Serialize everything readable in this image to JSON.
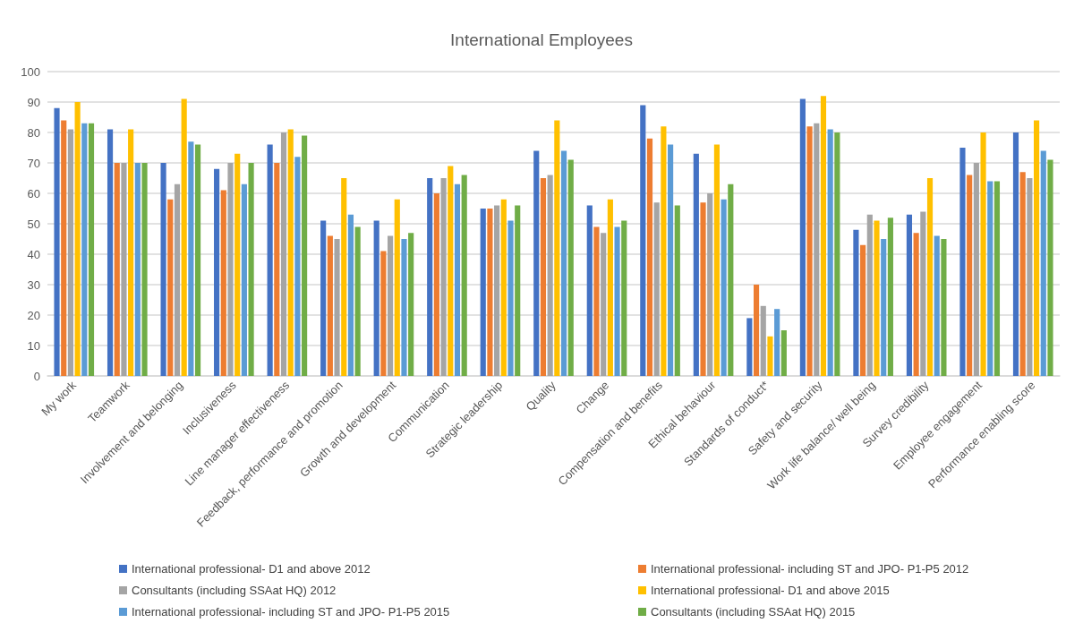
{
  "chart_data": {
    "type": "bar",
    "title": "International Employees",
    "categories": [
      "My work",
      "Teamwork",
      "Involvement and belonging",
      "Inclusiveness",
      "Line manager effectiveness",
      "Feedback, performance and promotion",
      "Growth and development",
      "Communication",
      "Strategic leadership",
      "Quality",
      "Change",
      "Compensation and benefits",
      "Ethical behaviour",
      "Standards of conduct*",
      "Safety and security",
      "Work life balance/ well being",
      "Survey credibility",
      "Employee engagement",
      "Performance enabling score"
    ],
    "series": [
      {
        "name": "International professional- D1 and above 2012",
        "color": "#4472c4",
        "values": [
          88,
          81,
          70,
          68,
          76,
          51,
          51,
          65,
          55,
          74,
          56,
          89,
          73,
          19,
          91,
          48,
          53,
          75,
          80
        ]
      },
      {
        "name": "International professional- including ST and JPO- P1-P5 2012",
        "color": "#ed7d31",
        "values": [
          84,
          70,
          58,
          61,
          70,
          46,
          41,
          60,
          55,
          65,
          49,
          78,
          57,
          30,
          82,
          43,
          47,
          66,
          67
        ]
      },
      {
        "name": "Consultants (including SSAat HQ) 2012",
        "color": "#a5a5a5",
        "values": [
          81,
          70,
          63,
          70,
          80,
          45,
          46,
          65,
          56,
          66,
          47,
          57,
          60,
          23,
          83,
          53,
          54,
          70,
          65
        ]
      },
      {
        "name": "International professional- D1 and above 2015",
        "color": "#ffc000",
        "values": [
          90,
          81,
          91,
          73,
          81,
          65,
          58,
          69,
          58,
          84,
          58,
          82,
          76,
          13,
          92,
          51,
          65,
          80,
          84
        ]
      },
      {
        "name": "International professional- including ST and JPO- P1-P5 2015",
        "color": "#5b9bd5",
        "values": [
          83,
          70,
          77,
          63,
          72,
          53,
          45,
          63,
          51,
          74,
          49,
          76,
          58,
          22,
          81,
          45,
          46,
          64,
          74
        ]
      },
      {
        "name": "Consultants (including SSAat HQ) 2015",
        "color": "#70ad47",
        "values": [
          83,
          70,
          76,
          70,
          79,
          49,
          47,
          66,
          56,
          71,
          51,
          56,
          63,
          15,
          80,
          52,
          45,
          64,
          71
        ]
      }
    ],
    "ylim": [
      0,
      100
    ],
    "yticks": [
      0,
      10,
      20,
      30,
      40,
      50,
      60,
      70,
      80,
      90,
      100
    ],
    "grid": "y",
    "legend": "bottom"
  }
}
